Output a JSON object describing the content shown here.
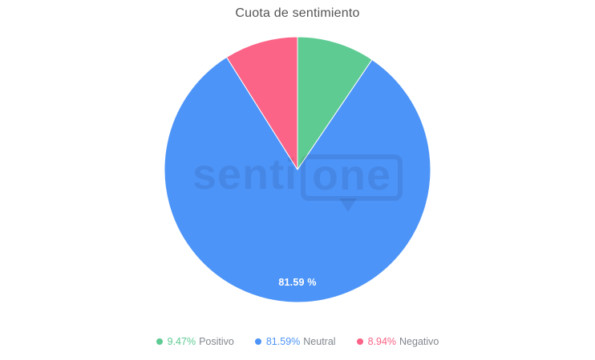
{
  "chart_data": {
    "type": "pie",
    "title": "Cuota de sentimiento",
    "slices": [
      {
        "label": "Positivo",
        "value": 9.47,
        "color": "#5ecb93"
      },
      {
        "label": "Neutral",
        "value": 81.59,
        "color": "#4d94f8",
        "data_label": "81.59 %"
      },
      {
        "label": "Negativo",
        "value": 8.94,
        "color": "#fb6387"
      }
    ],
    "start_angle_deg": 0,
    "direction": "clockwise",
    "legend_position": "bottom",
    "background": "#ffffff"
  },
  "legend": {
    "items": [
      {
        "pct": "9.47%",
        "name": "Positivo",
        "color": "#5ecb93"
      },
      {
        "pct": "81.59%",
        "name": "Neutral",
        "color": "#4d94f8"
      },
      {
        "pct": "8.94%",
        "name": "Negativo",
        "color": "#fb6387"
      }
    ]
  },
  "watermark": {
    "part1": "senti",
    "part2": "one"
  }
}
